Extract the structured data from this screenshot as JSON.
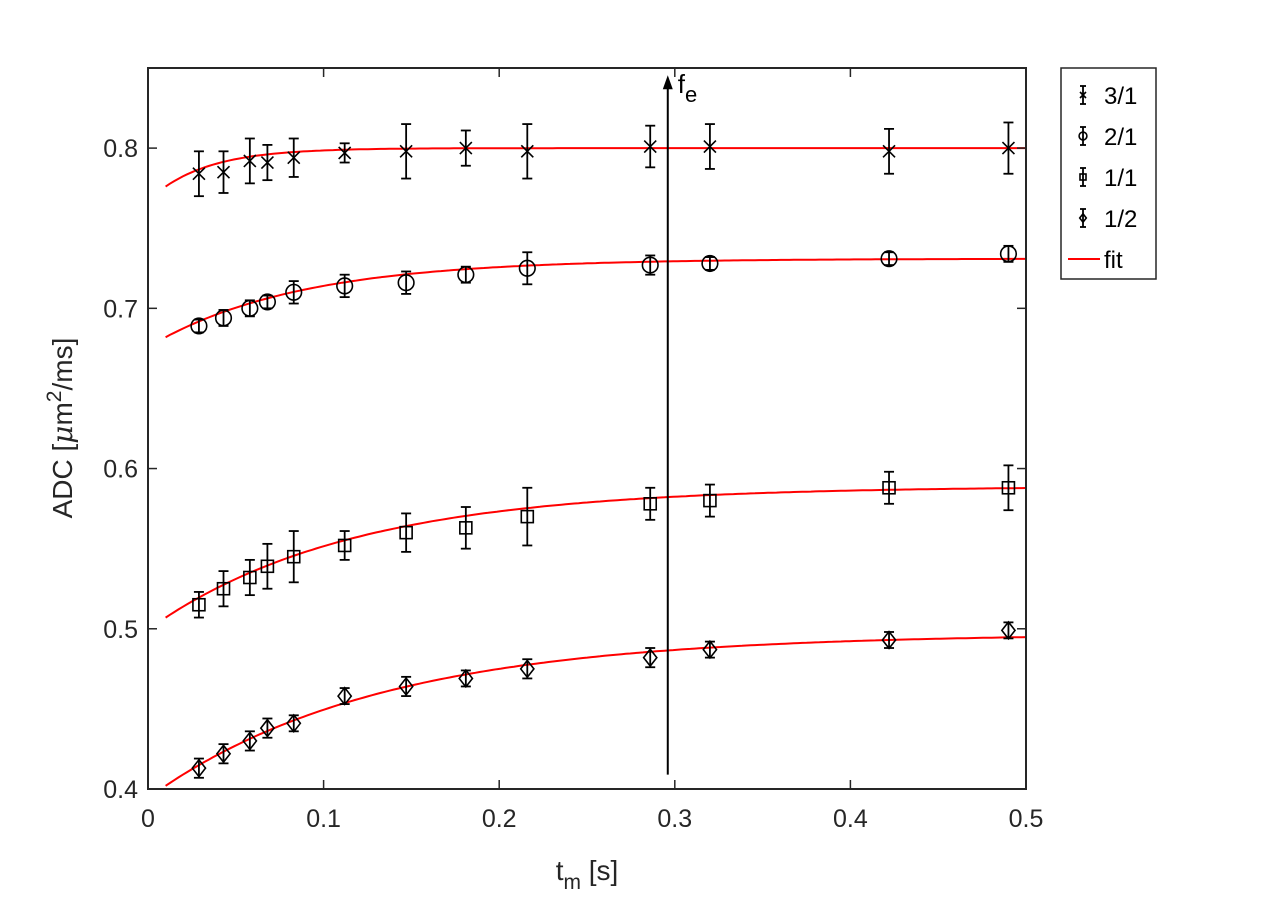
{
  "chart_data": {
    "type": "scatter",
    "x_label": {
      "main": "t",
      "sub": "m",
      "rest": " [s]"
    },
    "y_label": {
      "main": "ADC [",
      "mu": "μ",
      "after_mu": "m",
      "sup": "2",
      "rest": "/ms]"
    },
    "xlim": [
      0,
      0.5
    ],
    "ylim": [
      0.4,
      0.85
    ],
    "x_ticks": [
      0,
      0.1,
      0.2,
      0.3,
      0.4,
      0.5
    ],
    "x_tick_labels": [
      "0",
      "0.1",
      "0.2",
      "0.3",
      "0.4",
      "0.5"
    ],
    "y_ticks": [
      0.4,
      0.5,
      0.6,
      0.7,
      0.8
    ],
    "y_tick_labels": [
      "0.4",
      "0.5",
      "0.6",
      "0.7",
      "0.8"
    ],
    "grid": false,
    "legend_position": "outside-right-top",
    "x": [
      0.029,
      0.043,
      0.058,
      0.068,
      0.083,
      0.112,
      0.147,
      0.181,
      0.216,
      0.286,
      0.32,
      0.422,
      0.49
    ],
    "series": [
      {
        "name": "3/1",
        "marker": "x",
        "values": [
          0.784,
          0.785,
          0.792,
          0.791,
          0.794,
          0.797,
          0.798,
          0.8,
          0.798,
          0.801,
          0.801,
          0.798,
          0.8
        ],
        "errors": [
          0.014,
          0.013,
          0.014,
          0.011,
          0.012,
          0.006,
          0.017,
          0.011,
          0.017,
          0.013,
          0.014,
          0.014,
          0.016
        ]
      },
      {
        "name": "2/1",
        "marker": "circle",
        "values": [
          0.689,
          0.694,
          0.7,
          0.704,
          0.71,
          0.714,
          0.716,
          0.721,
          0.725,
          0.727,
          0.728,
          0.731,
          0.734
        ],
        "errors": [
          0.004,
          0.005,
          0.005,
          0.004,
          0.007,
          0.007,
          0.007,
          0.005,
          0.01,
          0.006,
          0.004,
          0.004,
          0.005
        ]
      },
      {
        "name": "1/1",
        "marker": "square",
        "values": [
          0.515,
          0.525,
          0.532,
          0.539,
          0.545,
          0.552,
          0.56,
          0.563,
          0.57,
          0.578,
          0.58,
          0.588,
          0.588
        ],
        "errors": [
          0.008,
          0.011,
          0.011,
          0.014,
          0.016,
          0.009,
          0.012,
          0.013,
          0.018,
          0.01,
          0.01,
          0.01,
          0.014
        ]
      },
      {
        "name": "1/2",
        "marker": "diamond",
        "values": [
          0.413,
          0.422,
          0.43,
          0.438,
          0.441,
          0.458,
          0.464,
          0.469,
          0.475,
          0.482,
          0.487,
          0.493,
          0.499
        ],
        "errors": [
          0.006,
          0.006,
          0.006,
          0.006,
          0.005,
          0.005,
          0.006,
          0.005,
          0.006,
          0.006,
          0.005,
          0.005,
          0.005
        ]
      }
    ],
    "fit": {
      "name": "fit",
      "color": "#ff0000",
      "curves": [
        {
          "asymptote": 0.8,
          "start": 0.776,
          "tau": 0.032
        },
        {
          "asymptote": 0.731,
          "start": 0.682,
          "tau": 0.085
        },
        {
          "asymptote": 0.589,
          "start": 0.507,
          "tau": 0.115
        },
        {
          "asymptote": 0.497,
          "start": 0.402,
          "tau": 0.13
        }
      ],
      "x_start": 0.01,
      "x_end": 0.5
    },
    "annotation": {
      "label": "f",
      "sub": "e",
      "x": 0.296,
      "y_from": 0.409,
      "y_to": 0.843
    }
  }
}
